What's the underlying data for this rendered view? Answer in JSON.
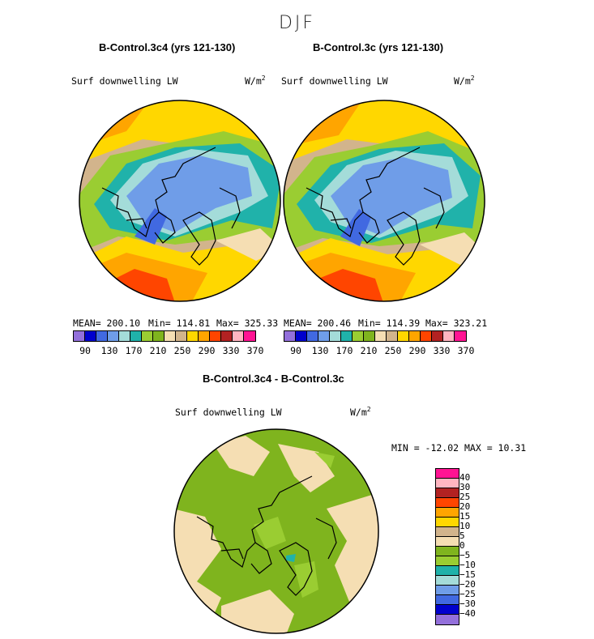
{
  "season": "DJF",
  "panels": [
    {
      "title": "B-Control.3c4 (yrs 121-130)",
      "variable": "Surf downwelling LW",
      "units": "W/m",
      "units_exp": "2",
      "mean_label": "MEAN= 200.10",
      "min_label": "Min= 114.81",
      "max_label": "Max= 325.33"
    },
    {
      "title": "B-Control.3c (yrs 121-130)",
      "variable": "Surf downwelling LW",
      "units": "W/m",
      "units_exp": "2",
      "mean_label": "MEAN= 200.46",
      "min_label": "Min= 114.39",
      "max_label": "Max= 323.21"
    }
  ],
  "abs_colorbar": {
    "colors": [
      "#9370db",
      "#0000cd",
      "#4169e1",
      "#6f9de8",
      "#a4dcd9",
      "#20b2aa",
      "#9acd32",
      "#7fb41e",
      "#f5deb3",
      "#d2b48c",
      "#ffd700",
      "#ffa500",
      "#ff4500",
      "#b22222",
      "#ffb6c1",
      "#ff1493"
    ],
    "ticks": [
      "90",
      "130",
      "170",
      "210",
      "250",
      "290",
      "330",
      "370"
    ]
  },
  "diff": {
    "title": "B-Control.3c4 - B-Control.3c",
    "variable": "Surf downwelling LW",
    "units": "W/m",
    "units_exp": "2",
    "minmax_label": "MIN = -12.02 MAX =  10.31",
    "colorbar": {
      "colors_top_to_bottom": [
        "#ff1493",
        "#ffb6c1",
        "#b22222",
        "#ff4500",
        "#ffa500",
        "#ffd700",
        "#d2b48c",
        "#f5deb3",
        "#7fb41e",
        "#9acd32",
        "#20b2aa",
        "#a4dcd9",
        "#6f9de8",
        "#4169e1",
        "#0000cd",
        "#9370db"
      ],
      "ticks_top_to_bottom": [
        "40",
        "30",
        "25",
        "20",
        "15",
        "10",
        "5",
        "0",
        "−5",
        "−10",
        "−15",
        "−20",
        "−25",
        "−30",
        "−40"
      ]
    }
  }
}
